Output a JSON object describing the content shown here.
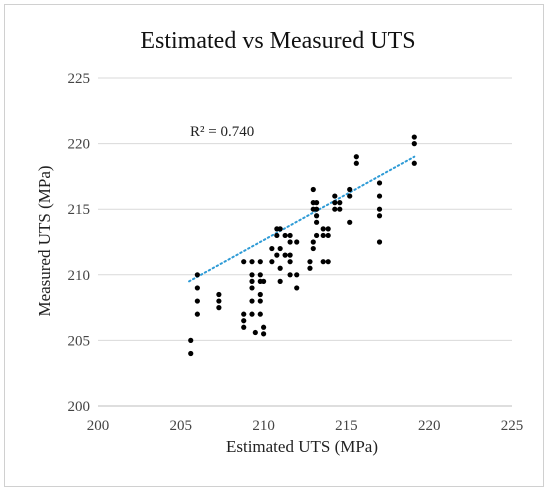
{
  "chart_data": {
    "type": "scatter",
    "title": "Estimated vs Measured UTS",
    "xlabel": "Estimated UTS (MPa)",
    "ylabel": "Measured UTS (MPa)",
    "xlim": [
      200,
      225
    ],
    "ylim": [
      200,
      225
    ],
    "xticks": [
      200,
      205,
      210,
      215,
      220,
      225
    ],
    "yticks": [
      200,
      205,
      210,
      215,
      220,
      225
    ],
    "grid": "horizontal",
    "annotation": "R² = 0.740",
    "point_color": "#000000",
    "trendline": {
      "style": "dotted",
      "color": "#2e9bd6",
      "x": [
        205.5,
        219.1
      ],
      "y": [
        209.5,
        219.0
      ]
    },
    "points": [
      [
        205.6,
        205.0
      ],
      [
        205.6,
        204.0
      ],
      [
        206.0,
        210.0
      ],
      [
        206.0,
        209.0
      ],
      [
        206.0,
        208.0
      ],
      [
        206.0,
        207.0
      ],
      [
        207.3,
        208.5
      ],
      [
        207.3,
        208.0
      ],
      [
        207.3,
        207.5
      ],
      [
        208.8,
        211.0
      ],
      [
        208.8,
        207.0
      ],
      [
        208.8,
        206.5
      ],
      [
        208.8,
        206.0
      ],
      [
        209.3,
        211.0
      ],
      [
        209.3,
        210.0
      ],
      [
        209.3,
        209.5
      ],
      [
        209.3,
        209.0
      ],
      [
        209.3,
        208.0
      ],
      [
        209.3,
        207.0
      ],
      [
        209.5,
        205.6
      ],
      [
        209.8,
        211.0
      ],
      [
        209.8,
        210.0
      ],
      [
        209.8,
        209.5
      ],
      [
        209.8,
        208.5
      ],
      [
        209.8,
        208.0
      ],
      [
        209.8,
        207.0
      ],
      [
        210.0,
        209.5
      ],
      [
        210.0,
        206.0
      ],
      [
        210.0,
        205.5
      ],
      [
        210.5,
        212.0
      ],
      [
        210.5,
        211.0
      ],
      [
        210.8,
        213.5
      ],
      [
        210.8,
        213.0
      ],
      [
        210.8,
        211.5
      ],
      [
        211.0,
        213.5
      ],
      [
        211.0,
        212.0
      ],
      [
        211.0,
        210.5
      ],
      [
        211.0,
        209.5
      ],
      [
        211.3,
        213.0
      ],
      [
        211.3,
        211.5
      ],
      [
        211.6,
        213.0
      ],
      [
        211.6,
        212.5
      ],
      [
        211.6,
        211.5
      ],
      [
        211.6,
        211.0
      ],
      [
        211.6,
        210.0
      ],
      [
        212.0,
        212.5
      ],
      [
        212.0,
        210.0
      ],
      [
        212.0,
        209.0
      ],
      [
        212.8,
        211.0
      ],
      [
        212.8,
        210.5
      ],
      [
        213.0,
        216.5
      ],
      [
        213.0,
        215.5
      ],
      [
        213.0,
        215.0
      ],
      [
        213.0,
        212.5
      ],
      [
        213.0,
        212.0
      ],
      [
        213.2,
        215.5
      ],
      [
        213.2,
        215.0
      ],
      [
        213.2,
        214.5
      ],
      [
        213.2,
        214.0
      ],
      [
        213.2,
        213.0
      ],
      [
        213.6,
        213.5
      ],
      [
        213.6,
        213.0
      ],
      [
        213.6,
        211.0
      ],
      [
        213.9,
        213.5
      ],
      [
        213.9,
        213.0
      ],
      [
        213.9,
        211.0
      ],
      [
        214.3,
        216.0
      ],
      [
        214.3,
        215.5
      ],
      [
        214.3,
        215.0
      ],
      [
        214.6,
        215.5
      ],
      [
        214.6,
        215.0
      ],
      [
        215.2,
        216.5
      ],
      [
        215.2,
        216.0
      ],
      [
        215.2,
        214.0
      ],
      [
        215.6,
        219.0
      ],
      [
        215.6,
        218.5
      ],
      [
        217.0,
        217.0
      ],
      [
        217.0,
        216.0
      ],
      [
        217.0,
        215.0
      ],
      [
        217.0,
        214.5
      ],
      [
        217.0,
        212.5
      ],
      [
        219.1,
        220.5
      ],
      [
        219.1,
        220.0
      ],
      [
        219.1,
        218.5
      ]
    ]
  }
}
